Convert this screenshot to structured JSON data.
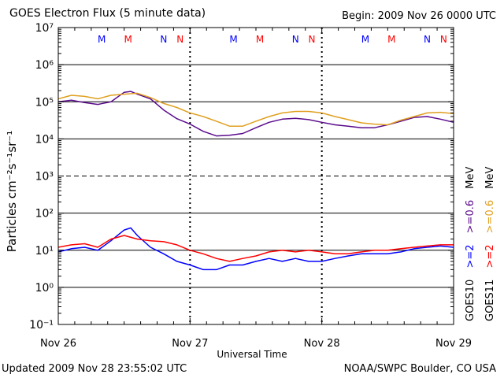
{
  "header": {
    "title": "GOES Electron Flux (5 minute data)",
    "begin": "Begin: 2009 Nov 26 0000 UTC"
  },
  "footer": {
    "updated": "Updated 2009 Nov 28 23:55:02 UTC",
    "credit": "NOAA/SWPC Boulder, CO USA"
  },
  "colors": {
    "goes10_2mev": "#0000ff",
    "goes11_2mev": "#ff0000",
    "goes10_06mev": "#5a0a8c",
    "goes11_06mev": "#e0a020",
    "marker_m_goes10": "#0000cc",
    "marker_m_goes11": "#cc0000"
  },
  "chart_data": {
    "type": "line",
    "xlabel": "Universal Time",
    "ylabel": "Particles cm⁻²s⁻¹sr⁻¹",
    "y_scale": "log",
    "ylim": [
      0.1,
      10000000
    ],
    "grid": true,
    "x_ticks": [
      "Nov 26",
      "Nov 27",
      "Nov 28",
      "Nov 29"
    ],
    "y_ticks": [
      "10⁻¹",
      "10⁰",
      "10¹",
      "10²",
      "10³",
      "10⁴",
      "10⁵",
      "10⁶",
      "10⁷"
    ],
    "day_markers": [
      [
        "M",
        "M",
        "N",
        "N"
      ],
      [
        "M",
        "M",
        "N",
        "N"
      ],
      [
        "M",
        "M",
        "N",
        "N"
      ]
    ],
    "legend": {
      "goes10_satellite": "GOES10",
      "goes10_2mev": ">=2",
      "goes10_06mev": ">=0.6",
      "goes10_unit": "MeV",
      "goes11_satellite": "GOES11",
      "goes11_2mev": ">=2",
      "goes11_06mev": ">=0.6",
      "goes11_unit": "MeV"
    },
    "series": [
      {
        "name": "GOES10 >=0.6 MeV",
        "x_days": [
          0,
          0.1,
          0.2,
          0.3,
          0.4,
          0.5,
          0.55,
          0.6,
          0.7,
          0.8,
          0.9,
          1.0,
          1.1,
          1.2,
          1.3,
          1.4,
          1.5,
          1.6,
          1.7,
          1.8,
          1.9,
          2.0,
          2.1,
          2.2,
          2.3,
          2.4,
          2.5,
          2.6,
          2.7,
          2.8,
          2.9,
          3.0
        ],
        "values": [
          100000,
          110000,
          95000,
          85000,
          100000,
          180000,
          190000,
          160000,
          120000,
          60000,
          35000,
          25000,
          16000,
          12000,
          12500,
          14000,
          20000,
          28000,
          34000,
          36000,
          33000,
          28000,
          24000,
          22000,
          20000,
          20000,
          24000,
          30000,
          38000,
          40000,
          34000,
          28000
        ]
      },
      {
        "name": "GOES11 >=0.6 MeV",
        "x_days": [
          0,
          0.1,
          0.2,
          0.3,
          0.4,
          0.5,
          0.6,
          0.7,
          0.8,
          0.9,
          1.0,
          1.1,
          1.2,
          1.3,
          1.4,
          1.5,
          1.6,
          1.7,
          1.8,
          1.9,
          2.0,
          2.1,
          2.2,
          2.3,
          2.4,
          2.5,
          2.6,
          2.7,
          2.8,
          2.9,
          3.0
        ],
        "values": [
          120000,
          150000,
          140000,
          120000,
          150000,
          160000,
          170000,
          130000,
          90000,
          70000,
          50000,
          40000,
          30000,
          22000,
          22000,
          30000,
          40000,
          50000,
          55000,
          55000,
          50000,
          40000,
          33000,
          27000,
          25000,
          24000,
          32000,
          40000,
          50000,
          52000,
          48000
        ]
      },
      {
        "name": "GOES10 >=2 MeV",
        "x_days": [
          0,
          0.1,
          0.2,
          0.3,
          0.4,
          0.5,
          0.55,
          0.6,
          0.7,
          0.8,
          0.9,
          1.0,
          1.1,
          1.2,
          1.3,
          1.4,
          1.5,
          1.6,
          1.7,
          1.8,
          1.9,
          2.0,
          2.1,
          2.2,
          2.3,
          2.4,
          2.5,
          2.6,
          2.7,
          2.8,
          2.9,
          3.0
        ],
        "values": [
          9,
          11,
          12,
          10,
          18,
          35,
          40,
          25,
          12,
          8,
          5,
          4,
          3,
          3,
          4,
          4,
          5,
          6,
          5,
          6,
          5,
          5,
          6,
          7,
          8,
          8,
          8,
          9,
          11,
          12,
          13,
          12
        ]
      },
      {
        "name": "GOES11 >=2 MeV",
        "x_days": [
          0,
          0.1,
          0.2,
          0.3,
          0.4,
          0.5,
          0.6,
          0.7,
          0.8,
          0.9,
          1.0,
          1.1,
          1.2,
          1.3,
          1.4,
          1.5,
          1.6,
          1.7,
          1.8,
          1.9,
          2.0,
          2.1,
          2.2,
          2.3,
          2.4,
          2.5,
          2.6,
          2.7,
          2.8,
          2.9,
          3.0
        ],
        "values": [
          12,
          14,
          15,
          12,
          20,
          25,
          20,
          18,
          17,
          14,
          10,
          8,
          6,
          5,
          6,
          7,
          9,
          10,
          9,
          10,
          9,
          8,
          8,
          9,
          10,
          10,
          11,
          12,
          13,
          14,
          14
        ]
      }
    ]
  }
}
